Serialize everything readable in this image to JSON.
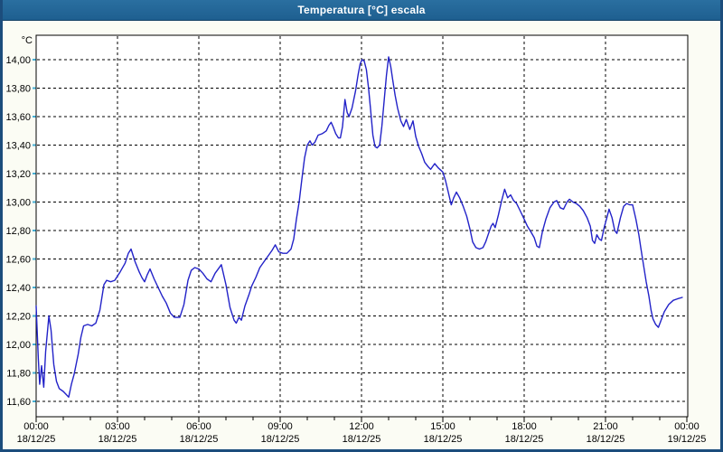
{
  "window": {
    "title": "Temperatura [°C] escala"
  },
  "colors": {
    "titlebar_bg": "#1e5f90",
    "titlebar_text": "#ffffff",
    "window_border": "#1c4d7c",
    "page_bg": "#fbfcf4",
    "plot_bg": "#ffffff",
    "grid": "#000000",
    "axis": "#000000",
    "line": "#2222c8",
    "y_tick": "#45b0d6",
    "label": "#000000"
  },
  "chart_data": {
    "type": "line",
    "title": "Temperatura [°C] escala",
    "unit_label": "°C",
    "grid": "on",
    "legend": "none",
    "xlim_hours": [
      0,
      24
    ],
    "ylim": [
      11.49,
      14.17
    ],
    "y_ticks": [
      {
        "value": 14.0,
        "label": "14,00"
      },
      {
        "value": 13.8,
        "label": "13,80"
      },
      {
        "value": 13.6,
        "label": "13,60"
      },
      {
        "value": 13.4,
        "label": "13,40"
      },
      {
        "value": 13.2,
        "label": "13,20"
      },
      {
        "value": 13.0,
        "label": "13,00"
      },
      {
        "value": 12.8,
        "label": "12,80"
      },
      {
        "value": 12.6,
        "label": "12,60"
      },
      {
        "value": 12.4,
        "label": "12,40"
      },
      {
        "value": 12.2,
        "label": "12,20"
      },
      {
        "value": 12.0,
        "label": "12,00"
      },
      {
        "value": 11.8,
        "label": "11,80"
      },
      {
        "value": 11.6,
        "label": "11,60"
      }
    ],
    "x_ticks": [
      {
        "hour": 0,
        "time": "00:00",
        "date": "18/12/25"
      },
      {
        "hour": 3,
        "time": "03:00",
        "date": "18/12/25"
      },
      {
        "hour": 6,
        "time": "06:00",
        "date": "18/12/25"
      },
      {
        "hour": 9,
        "time": "09:00",
        "date": "18/12/25"
      },
      {
        "hour": 12,
        "time": "12:00",
        "date": "18/12/25"
      },
      {
        "hour": 15,
        "time": "15:00",
        "date": "18/12/25"
      },
      {
        "hour": 18,
        "time": "18:00",
        "date": "18/12/25"
      },
      {
        "hour": 21,
        "time": "21:00",
        "date": "18/12/25"
      },
      {
        "hour": 24,
        "time": "00:00",
        "date": "19/12/25"
      }
    ],
    "series": [
      {
        "name": "Temperatura",
        "points": [
          [
            0.0,
            12.27
          ],
          [
            0.08,
            11.9
          ],
          [
            0.13,
            11.72
          ],
          [
            0.2,
            11.85
          ],
          [
            0.28,
            11.7
          ],
          [
            0.35,
            11.95
          ],
          [
            0.47,
            12.2
          ],
          [
            0.55,
            12.1
          ],
          [
            0.65,
            11.86
          ],
          [
            0.75,
            11.74
          ],
          [
            0.85,
            11.69
          ],
          [
            1.0,
            11.67
          ],
          [
            1.1,
            11.65
          ],
          [
            1.2,
            11.63
          ],
          [
            1.3,
            11.72
          ],
          [
            1.4,
            11.79
          ],
          [
            1.55,
            11.93
          ],
          [
            1.65,
            12.05
          ],
          [
            1.75,
            12.13
          ],
          [
            1.9,
            12.14
          ],
          [
            2.05,
            12.13
          ],
          [
            2.2,
            12.15
          ],
          [
            2.35,
            12.24
          ],
          [
            2.5,
            12.42
          ],
          [
            2.6,
            12.45
          ],
          [
            2.75,
            12.44
          ],
          [
            2.9,
            12.45
          ],
          [
            3.1,
            12.51
          ],
          [
            3.28,
            12.57
          ],
          [
            3.4,
            12.64
          ],
          [
            3.5,
            12.67
          ],
          [
            3.65,
            12.58
          ],
          [
            3.8,
            12.51
          ],
          [
            3.9,
            12.47
          ],
          [
            4.0,
            12.44
          ],
          [
            4.1,
            12.49
          ],
          [
            4.2,
            12.53
          ],
          [
            4.35,
            12.46
          ],
          [
            4.5,
            12.4
          ],
          [
            4.65,
            12.34
          ],
          [
            4.8,
            12.29
          ],
          [
            4.95,
            12.22
          ],
          [
            5.1,
            12.19
          ],
          [
            5.3,
            12.19
          ],
          [
            5.45,
            12.28
          ],
          [
            5.6,
            12.45
          ],
          [
            5.72,
            12.52
          ],
          [
            5.85,
            12.54
          ],
          [
            6.0,
            12.53
          ],
          [
            6.15,
            12.5
          ],
          [
            6.3,
            12.46
          ],
          [
            6.45,
            12.44
          ],
          [
            6.6,
            12.5
          ],
          [
            6.83,
            12.56
          ],
          [
            7.0,
            12.42
          ],
          [
            7.15,
            12.26
          ],
          [
            7.3,
            12.17
          ],
          [
            7.38,
            12.15
          ],
          [
            7.48,
            12.19
          ],
          [
            7.57,
            12.17
          ],
          [
            7.7,
            12.27
          ],
          [
            7.85,
            12.35
          ],
          [
            7.95,
            12.41
          ],
          [
            8.1,
            12.47
          ],
          [
            8.25,
            12.54
          ],
          [
            8.4,
            12.58
          ],
          [
            8.55,
            12.62
          ],
          [
            8.7,
            12.66
          ],
          [
            8.82,
            12.7
          ],
          [
            8.95,
            12.65
          ],
          [
            9.1,
            12.64
          ],
          [
            9.25,
            12.64
          ],
          [
            9.4,
            12.67
          ],
          [
            9.5,
            12.74
          ],
          [
            9.6,
            12.88
          ],
          [
            9.7,
            13.0
          ],
          [
            9.8,
            13.16
          ],
          [
            9.9,
            13.31
          ],
          [
            10.0,
            13.4
          ],
          [
            10.1,
            13.43
          ],
          [
            10.18,
            13.4
          ],
          [
            10.28,
            13.42
          ],
          [
            10.4,
            13.47
          ],
          [
            10.55,
            13.48
          ],
          [
            10.7,
            13.5
          ],
          [
            10.8,
            13.54
          ],
          [
            10.88,
            13.56
          ],
          [
            10.95,
            13.53
          ],
          [
            11.05,
            13.48
          ],
          [
            11.15,
            13.45
          ],
          [
            11.22,
            13.45
          ],
          [
            11.3,
            13.53
          ],
          [
            11.39,
            13.72
          ],
          [
            11.47,
            13.63
          ],
          [
            11.54,
            13.6
          ],
          [
            11.65,
            13.66
          ],
          [
            11.78,
            13.78
          ],
          [
            11.88,
            13.9
          ],
          [
            11.95,
            13.97
          ],
          [
            12.02,
            14.0
          ],
          [
            12.1,
            13.99
          ],
          [
            12.18,
            13.93
          ],
          [
            12.26,
            13.8
          ],
          [
            12.33,
            13.66
          ],
          [
            12.42,
            13.47
          ],
          [
            12.5,
            13.39
          ],
          [
            12.58,
            13.38
          ],
          [
            12.67,
            13.4
          ],
          [
            12.75,
            13.53
          ],
          [
            12.83,
            13.7
          ],
          [
            12.92,
            13.89
          ],
          [
            13.0,
            14.02
          ],
          [
            13.08,
            13.95
          ],
          [
            13.15,
            13.86
          ],
          [
            13.24,
            13.75
          ],
          [
            13.33,
            13.66
          ],
          [
            13.45,
            13.57
          ],
          [
            13.55,
            13.53
          ],
          [
            13.65,
            13.58
          ],
          [
            13.78,
            13.51
          ],
          [
            13.9,
            13.57
          ],
          [
            14.0,
            13.46
          ],
          [
            14.11,
            13.39
          ],
          [
            14.22,
            13.34
          ],
          [
            14.33,
            13.28
          ],
          [
            14.45,
            13.25
          ],
          [
            14.55,
            13.23
          ],
          [
            14.7,
            13.27
          ],
          [
            14.83,
            13.24
          ],
          [
            15.0,
            13.21
          ],
          [
            15.1,
            13.15
          ],
          [
            15.2,
            13.07
          ],
          [
            15.31,
            12.98
          ],
          [
            15.4,
            13.03
          ],
          [
            15.5,
            13.07
          ],
          [
            15.62,
            13.03
          ],
          [
            15.75,
            12.97
          ],
          [
            15.88,
            12.9
          ],
          [
            16.0,
            12.81
          ],
          [
            16.1,
            12.72
          ],
          [
            16.22,
            12.68
          ],
          [
            16.35,
            12.67
          ],
          [
            16.48,
            12.68
          ],
          [
            16.58,
            12.72
          ],
          [
            16.67,
            12.77
          ],
          [
            16.78,
            12.83
          ],
          [
            16.85,
            12.85
          ],
          [
            16.93,
            12.82
          ],
          [
            17.05,
            12.91
          ],
          [
            17.17,
            13.01
          ],
          [
            17.28,
            13.09
          ],
          [
            17.39,
            13.03
          ],
          [
            17.5,
            13.05
          ],
          [
            17.61,
            13.01
          ],
          [
            17.72,
            12.99
          ],
          [
            17.85,
            12.94
          ],
          [
            18.0,
            12.88
          ],
          [
            18.12,
            12.83
          ],
          [
            18.25,
            12.79
          ],
          [
            18.37,
            12.75
          ],
          [
            18.47,
            12.69
          ],
          [
            18.56,
            12.68
          ],
          [
            18.67,
            12.79
          ],
          [
            18.8,
            12.88
          ],
          [
            18.95,
            12.96
          ],
          [
            19.1,
            13.0
          ],
          [
            19.2,
            13.01
          ],
          [
            19.33,
            12.96
          ],
          [
            19.45,
            12.95
          ],
          [
            19.58,
            13.0
          ],
          [
            19.67,
            13.02
          ],
          [
            19.8,
            13.0
          ],
          [
            19.92,
            12.99
          ],
          [
            20.05,
            12.97
          ],
          [
            20.18,
            12.94
          ],
          [
            20.32,
            12.89
          ],
          [
            20.44,
            12.83
          ],
          [
            20.52,
            12.73
          ],
          [
            20.6,
            12.71
          ],
          [
            20.68,
            12.77
          ],
          [
            20.77,
            12.74
          ],
          [
            20.85,
            12.73
          ],
          [
            20.95,
            12.82
          ],
          [
            21.05,
            12.89
          ],
          [
            21.13,
            12.95
          ],
          [
            21.24,
            12.89
          ],
          [
            21.34,
            12.8
          ],
          [
            21.42,
            12.78
          ],
          [
            21.55,
            12.89
          ],
          [
            21.67,
            12.97
          ],
          [
            21.78,
            12.99
          ],
          [
            21.9,
            12.98
          ],
          [
            22.0,
            12.98
          ],
          [
            22.12,
            12.88
          ],
          [
            22.23,
            12.77
          ],
          [
            22.3,
            12.68
          ],
          [
            22.4,
            12.56
          ],
          [
            22.5,
            12.44
          ],
          [
            22.6,
            12.34
          ],
          [
            22.68,
            12.24
          ],
          [
            22.75,
            12.18
          ],
          [
            22.85,
            12.14
          ],
          [
            22.95,
            12.12
          ],
          [
            23.05,
            12.17
          ],
          [
            23.17,
            12.23
          ],
          [
            23.33,
            12.28
          ],
          [
            23.5,
            12.31
          ],
          [
            23.65,
            12.32
          ],
          [
            23.83,
            12.33
          ]
        ]
      }
    ]
  }
}
